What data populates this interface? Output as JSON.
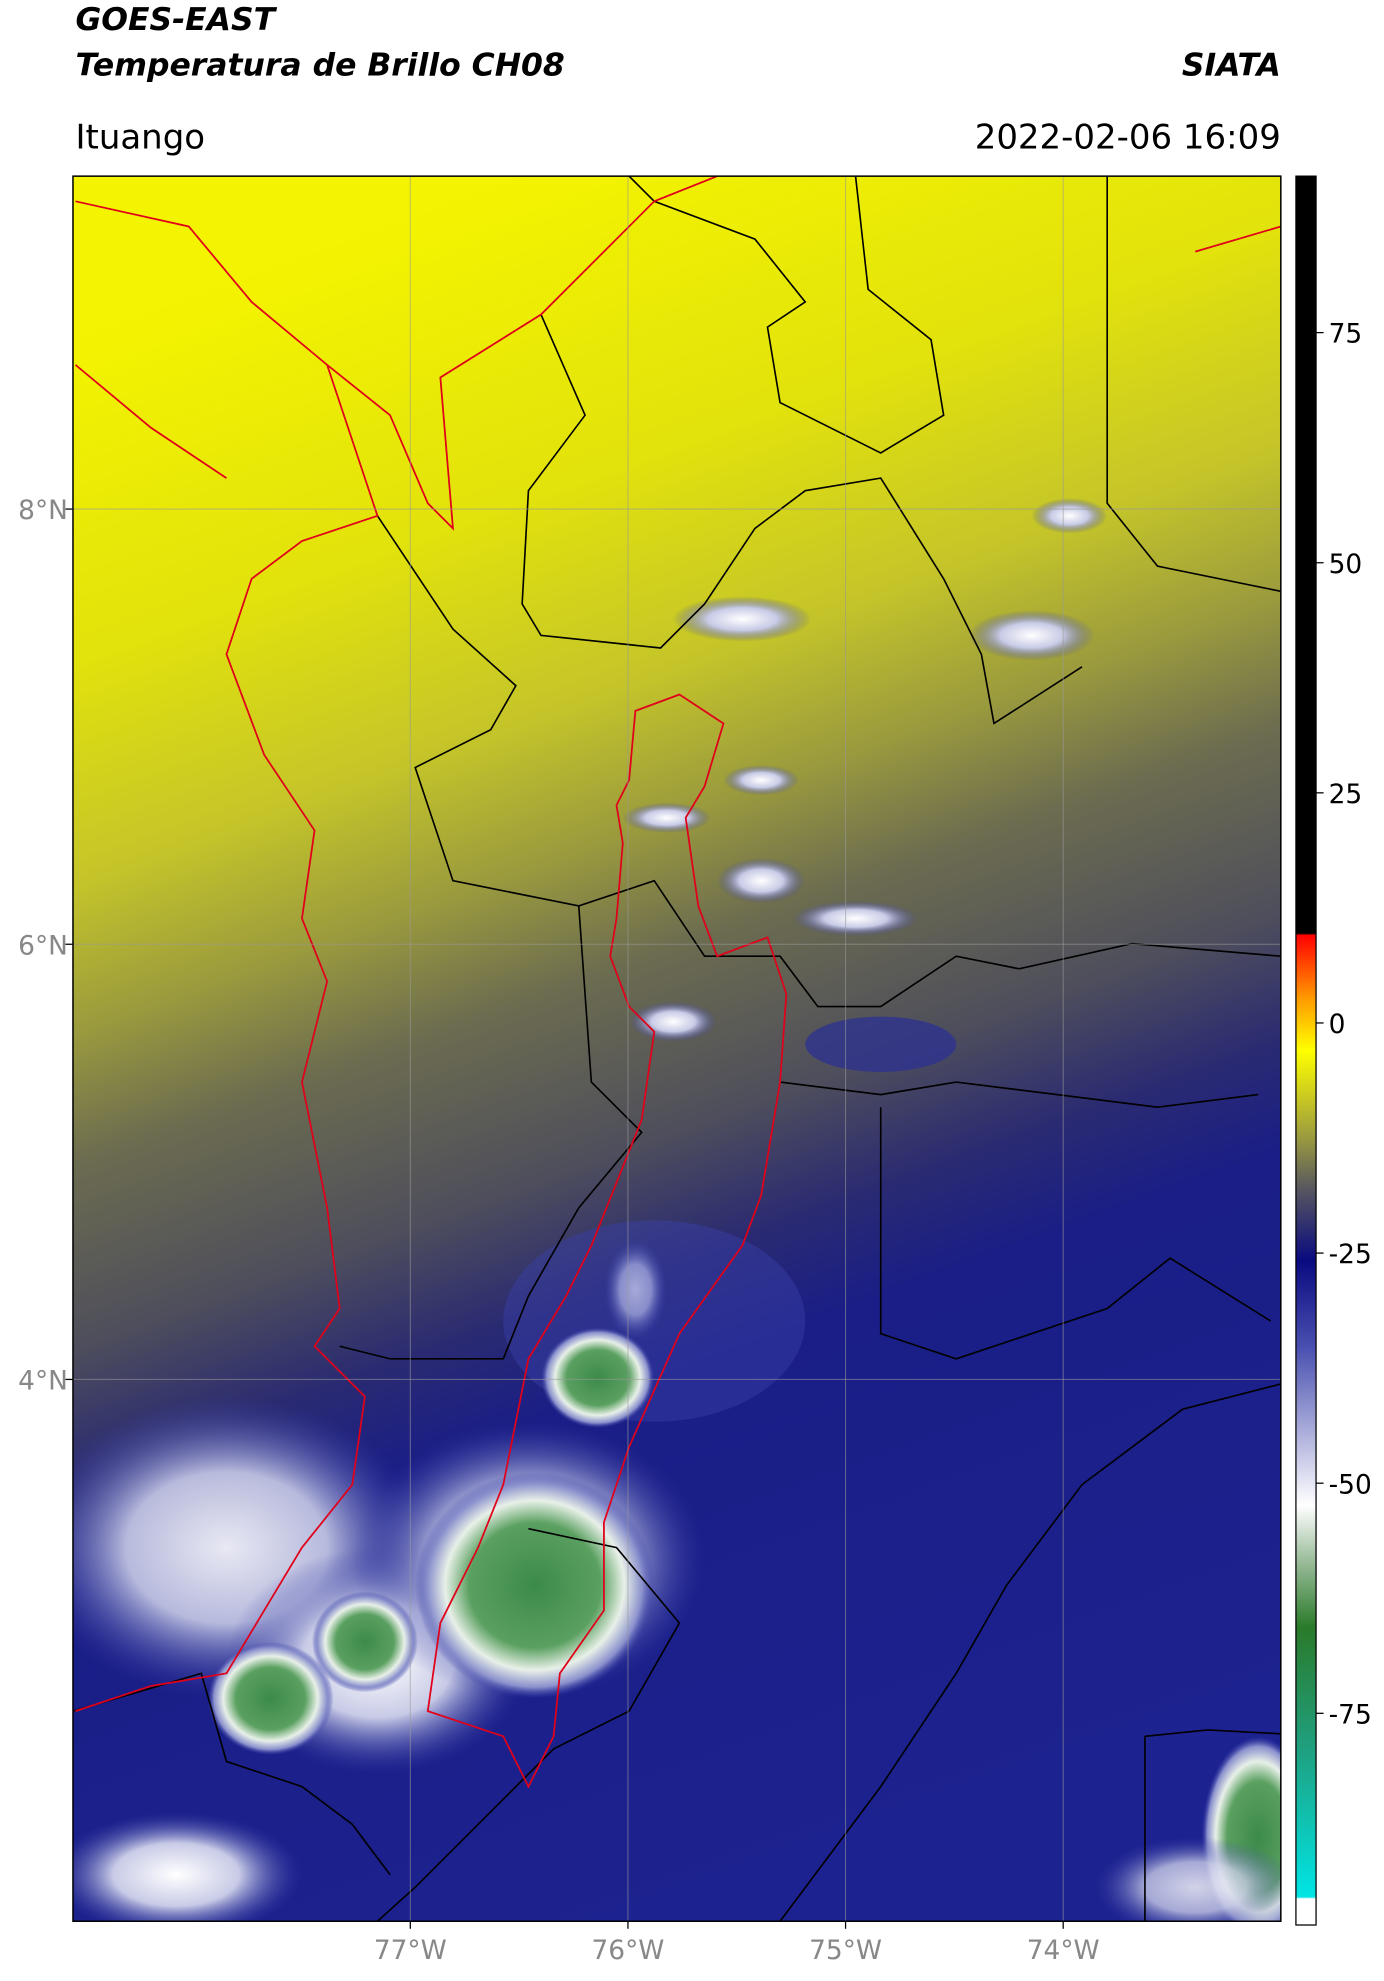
{
  "chart_data": {
    "type": "map",
    "title": "GOES-EAST",
    "subtitle": "Temperatura de Brillo CH08",
    "source": "SIATA",
    "region": "Ituango",
    "datetime": "2022-02-06 16:09",
    "xlim": [
      -78.55,
      -73.0
    ],
    "ylim": [
      1.51,
      9.53
    ],
    "xticks": [
      {
        "value": -77,
        "label": "77°W"
      },
      {
        "value": -76,
        "label": "76°W"
      },
      {
        "value": -75,
        "label": "75°W"
      },
      {
        "value": -74,
        "label": "74°W"
      }
    ],
    "yticks": [
      {
        "value": 4,
        "label": "4°N"
      },
      {
        "value": 6,
        "label": "6°N"
      },
      {
        "value": 8,
        "label": "8°N"
      }
    ],
    "grid": true,
    "colorbar": {
      "lim": [
        -98,
        92
      ],
      "ticks": [
        -75,
        -50,
        -25,
        0,
        25,
        50,
        75
      ]
    }
  }
}
